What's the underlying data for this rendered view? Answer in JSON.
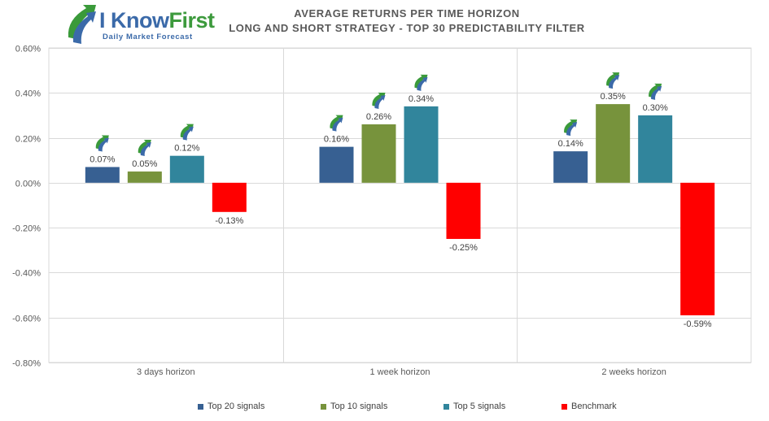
{
  "header": {
    "logo_word_1": "I Know",
    "logo_word_2": "First",
    "logo_tagline": "Daily Market Forecast",
    "title_line_1": "AVERAGE RETURNS PER TIME HORIZON",
    "title_line_2": "LONG AND SHORT STRATEGY - TOP 30 PREDICTABILITY FILTER"
  },
  "colors": {
    "top20": "#376092",
    "top10": "#77933c",
    "top5": "#31859c",
    "benchmark": "#ff0000",
    "grid": "#d9d9d9",
    "axis_text": "#595959",
    "icon": "arrow-swirl-icon"
  },
  "chart_data": {
    "type": "bar",
    "title": "AVERAGE RETURNS PER TIME HORIZON",
    "subtitle": "LONG AND SHORT STRATEGY - TOP 30 PREDICTABILITY FILTER",
    "categories": [
      "3 days horizon",
      "1 week horizon",
      "2 weeks horizon"
    ],
    "series": [
      {
        "name": "Top 20 signals",
        "values": [
          0.07,
          0.16,
          0.14
        ],
        "labels": [
          "0.07%",
          "0.16%",
          "0.14%"
        ]
      },
      {
        "name": "Top 10 signals",
        "values": [
          0.05,
          0.26,
          0.35
        ],
        "labels": [
          "0.05%",
          "0.26%",
          "0.35%"
        ]
      },
      {
        "name": "Top 5 signals",
        "values": [
          0.12,
          0.34,
          0.3
        ],
        "labels": [
          "0.12%",
          "0.34%",
          "0.30%"
        ]
      },
      {
        "name": "Benchmark",
        "values": [
          -0.13,
          -0.25,
          -0.59
        ],
        "labels": [
          "-0.13%",
          "-0.25%",
          "-0.59%"
        ]
      }
    ],
    "ylim": [
      -0.8,
      0.6
    ],
    "yticks": [
      0.6,
      0.4,
      0.2,
      0.0,
      -0.2,
      -0.4,
      -0.6,
      -0.8
    ],
    "ytick_labels": [
      "0.60%",
      "0.40%",
      "0.20%",
      "0.00%",
      "-0.20%",
      "-0.40%",
      "-0.60%",
      "-0.80%"
    ],
    "grid": true,
    "legend": "bottom",
    "xlabel": "",
    "ylabel": ""
  }
}
